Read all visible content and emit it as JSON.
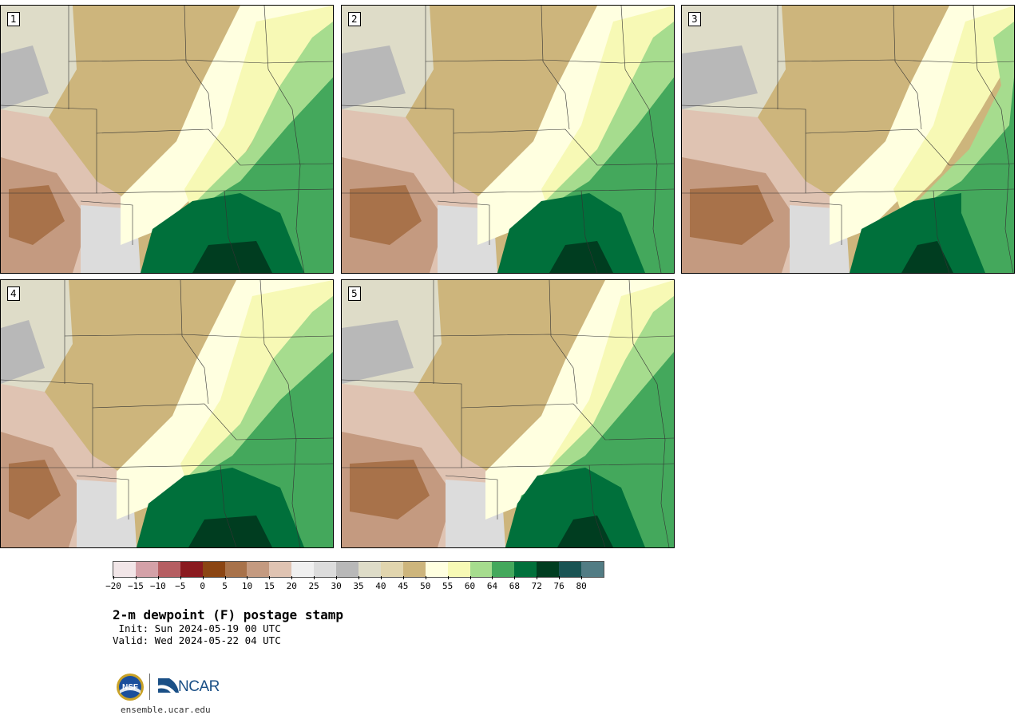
{
  "panels": [
    {
      "label": "1"
    },
    {
      "label": "2"
    },
    {
      "label": "3"
    },
    {
      "label": "4"
    },
    {
      "label": "5"
    }
  ],
  "colorbar": {
    "colors": [
      "#f2e6e8",
      "#d4a1a8",
      "#b55e62",
      "#8a1a1f",
      "#8b4513",
      "#a8724a",
      "#c49a80",
      "#dfc3b2",
      "#f0f0f0",
      "#dcdcdc",
      "#b8b8b8",
      "#dedcc8",
      "#e1d5ae",
      "#cdb57c",
      "#ffffe0",
      "#f7f9b5",
      "#a6dc8e",
      "#44a85c",
      "#00703b",
      "#003d20",
      "#1a5454",
      "#527c84"
    ],
    "tick_labels": [
      "−20",
      "−15",
      "−10",
      "−5",
      "0",
      "5",
      "10",
      "15",
      "20",
      "25",
      "30",
      "35",
      "40",
      "45",
      "50",
      "55",
      "60",
      "64",
      "68",
      "72",
      "76",
      "80"
    ]
  },
  "title": {
    "main": "2-m dewpoint (F) postage stamp",
    "init": " Init: Sun 2024-05-19 00 UTC",
    "valid": "Valid: Wed 2024-05-22 04 UTC"
  },
  "logos": {
    "nsf_text": "NSF",
    "ncar_text": "NCAR",
    "url": "ensemble.ucar.edu"
  }
}
